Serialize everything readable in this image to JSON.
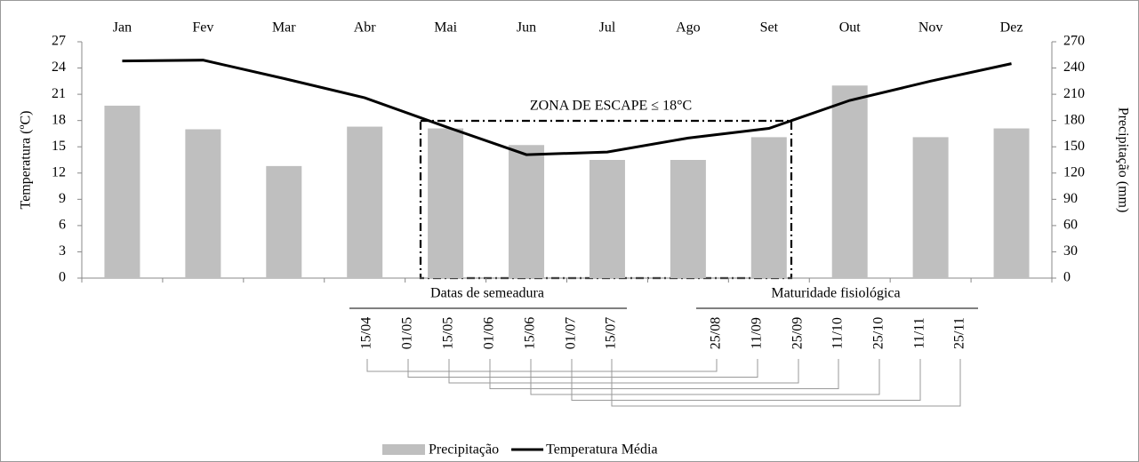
{
  "chart_data": {
    "type": "combo",
    "categories": [
      "Jan",
      "Fev",
      "Mar",
      "Abr",
      "Mai",
      "Jun",
      "Jul",
      "Ago",
      "Set",
      "Out",
      "Nov",
      "Dez"
    ],
    "series": [
      {
        "name": "Precipitação",
        "type": "bar",
        "axis": "y2",
        "color": "#bfbfbf",
        "values": [
          197,
          170,
          128,
          173,
          171,
          152,
          135,
          135,
          161,
          220,
          161,
          171
        ]
      },
      {
        "name": "Temperatura Média",
        "type": "line",
        "axis": "y",
        "color": "#000000",
        "values": [
          24.8,
          24.9,
          22.8,
          20.6,
          17.3,
          14.1,
          14.4,
          16.0,
          17.1,
          20.3,
          22.5,
          24.5
        ]
      }
    ],
    "ylabel": "Temperatura (ºC)",
    "y2label": "Precipitação (mm)",
    "ylim": [
      0,
      27
    ],
    "yticks": [
      0,
      3,
      6,
      9,
      12,
      15,
      18,
      21,
      24,
      27
    ],
    "y2lim": [
      0,
      270
    ],
    "y2ticks": [
      0,
      30,
      60,
      90,
      120,
      150,
      180,
      210,
      240,
      270
    ],
    "annotations": {
      "zone": "ZONA DE ESCAPE ≤ 18°C",
      "sowing_title": "Datas de semeadura",
      "sowing_dates": [
        "15/04",
        "01/05",
        "15/05",
        "01/06",
        "15/06",
        "01/07",
        "15/07"
      ],
      "maturity_title": "Maturidade fisiológica",
      "maturity_dates": [
        "25/08",
        "11/09",
        "25/09",
        "11/10",
        "25/10",
        "11/11",
        "25/11"
      ]
    },
    "legend": "bottom"
  }
}
